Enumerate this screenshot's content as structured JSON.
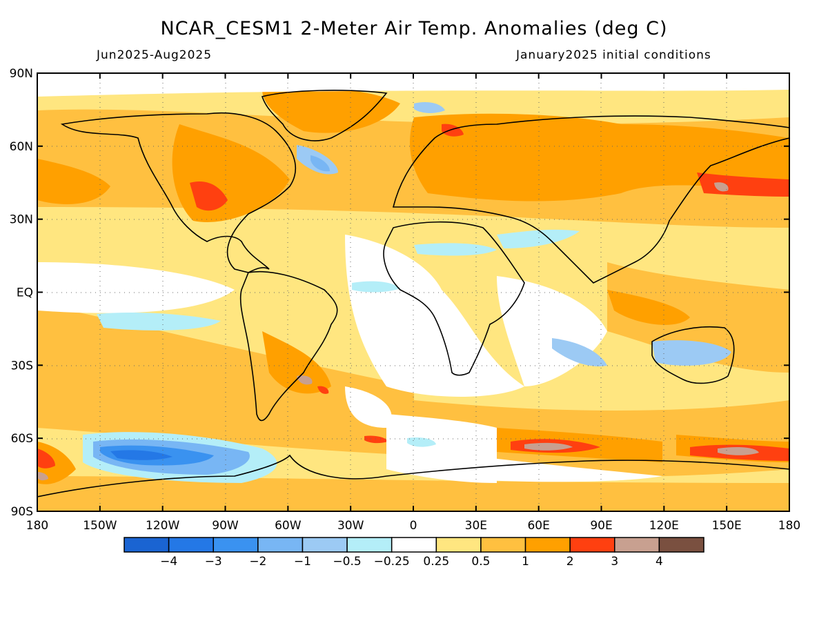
{
  "header": {
    "title": "NCAR_CESM1 2-Meter Air Temp. Anomalies (deg C)",
    "period": "Jun2025-Aug2025",
    "initial_conditions": "January2025 initial conditions"
  },
  "chart_data": {
    "type": "heatmap",
    "x_ticks": [
      "180",
      "150W",
      "120W",
      "90W",
      "60W",
      "30W",
      "0",
      "30E",
      "60E",
      "90E",
      "120E",
      "150E",
      "180"
    ],
    "y_ticks": [
      "90N",
      "60N",
      "30N",
      "EQ",
      "30S",
      "60S",
      "90S"
    ],
    "xlim": [
      -180,
      180
    ],
    "ylim": [
      -90,
      90
    ],
    "grid": "dotted",
    "colorbar": {
      "colors": [
        "#1a64d2",
        "#2478e6",
        "#3a92f0",
        "#78b6f4",
        "#9ccaf4",
        "#b4eef8",
        "#ffffff",
        "#ffe680",
        "#ffc040",
        "#ffa000",
        "#ff4010",
        "#c8a090",
        "#7a5040"
      ],
      "labels": [
        "-4",
        "-3",
        "-2",
        "-1",
        "-0.5",
        "-0.25",
        "0.25",
        "0.5",
        "1",
        "2",
        "3",
        "4"
      ]
    }
  }
}
